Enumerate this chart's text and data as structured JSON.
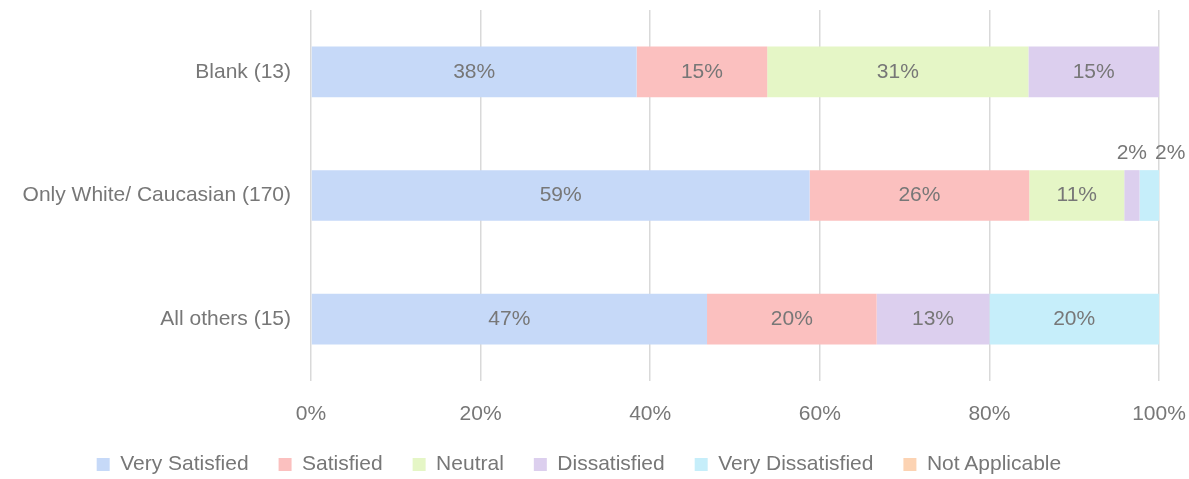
{
  "chart_data": {
    "type": "bar",
    "orientation": "horizontal",
    "stacked": true,
    "categories": [
      "Blank (13)",
      "Only White/ Caucasian (170)",
      "All others (15)"
    ],
    "series": [
      {
        "name": "Very Satisfied",
        "color": "#c6d9f8",
        "values": [
          38.4,
          58.8,
          46.7
        ],
        "value_labels": [
          "38%",
          "59%",
          "47%"
        ]
      },
      {
        "name": "Satisfied",
        "color": "#fbc0bf",
        "values": [
          15.4,
          25.9,
          20.0
        ],
        "value_labels": [
          "15%",
          "26%",
          "20%"
        ]
      },
      {
        "name": "Neutral",
        "color": "#e5f6c6",
        "values": [
          30.8,
          11.2,
          null
        ],
        "value_labels": [
          "31%",
          "11%",
          null
        ]
      },
      {
        "name": "Dissatisfied",
        "color": "#dccfee",
        "values": [
          15.4,
          1.8,
          13.3
        ],
        "value_labels": [
          "15%",
          "2%",
          "13%"
        ]
      },
      {
        "name": "Very Dissatisfied",
        "color": "#c6eefa",
        "values": [
          null,
          2.3,
          20.0
        ],
        "value_labels": [
          null,
          "2%",
          "20%"
        ]
      },
      {
        "name": "Not Applicable",
        "color": "#fcd3b3",
        "values": [
          null,
          null,
          null
        ]
      }
    ],
    "xlim": [
      0,
      100
    ],
    "xticks": [
      {
        "value": 0,
        "label": "0%"
      },
      {
        "value": 20,
        "label": "20%"
      },
      {
        "value": 40,
        "label": "40%"
      },
      {
        "value": 60,
        "label": "60%"
      },
      {
        "value": 80,
        "label": "80%"
      },
      {
        "value": 100,
        "label": "100%"
      }
    ],
    "grid": "x",
    "legend": "bottom"
  }
}
